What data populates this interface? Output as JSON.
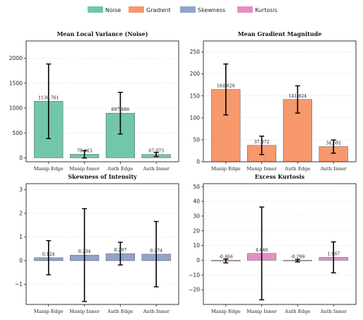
{
  "legend": [
    {
      "label": "Noise",
      "color": "#72c7a9"
    },
    {
      "label": "Gradient",
      "color": "#f7986d"
    },
    {
      "label": "Skewness",
      "color": "#92a3cb"
    },
    {
      "label": "Kurtosis",
      "color": "#e58fc5"
    }
  ],
  "chart_data": [
    {
      "type": "bar",
      "title": "Mean Local Variance (Noise)",
      "series_name": "Noise",
      "color": "#72c7a9",
      "categories": [
        "Manip Edge",
        "Manip Inner",
        "Auth Edge",
        "Auth Inner"
      ],
      "values": [
        1136.761,
        70.443,
        897.866,
        67.073
      ],
      "value_labels": [
        "1136.761",
        "70.443",
        "897.866",
        "67.073"
      ],
      "errors": [
        750,
        75,
        420,
        40
      ],
      "ylim": [
        -80,
        2350
      ],
      "yticks": [
        0,
        500,
        1000,
        1500,
        2000
      ],
      "ytick_labels": [
        "0",
        "500",
        "1000",
        "1500",
        "2000"
      ],
      "grid": true
    },
    {
      "type": "bar",
      "title": "Mean Gradient Magnitude",
      "series_name": "Gradient",
      "color": "#f7986d",
      "categories": [
        "Manip Edge",
        "Manip Inner",
        "Auth Edge",
        "Auth Inner"
      ],
      "values": [
        164.62,
        37.372,
        141.824,
        34.591
      ],
      "value_labels": [
        "164.620",
        "37.372",
        "141.824",
        "34.591"
      ],
      "errors": [
        58,
        21,
        31,
        15
      ],
      "ylim": [
        0,
        275
      ],
      "yticks": [
        0,
        50,
        100,
        150,
        200,
        250
      ],
      "ytick_labels": [
        "0",
        "50",
        "100",
        "150",
        "200",
        "250"
      ],
      "grid": true
    },
    {
      "type": "bar",
      "title": "Skewness of Intensity",
      "series_name": "Skewness",
      "color": "#92a3cb",
      "categories": [
        "Manip Edge",
        "Manip Inner",
        "Auth Edge",
        "Auth Inner"
      ],
      "values": [
        0.124,
        0.234,
        0.297,
        0.274
      ],
      "value_labels": [
        "0.124",
        "0.234",
        "0.297",
        "0.274"
      ],
      "errors": [
        0.72,
        1.96,
        0.48,
        1.38
      ],
      "ylim": [
        -1.85,
        3.25
      ],
      "yticks": [
        -1,
        0,
        1,
        2,
        3
      ],
      "ytick_labels": [
        "−1",
        "0",
        "1",
        "2",
        "3"
      ],
      "grid": true
    },
    {
      "type": "bar",
      "title": "Excess Kurtosis",
      "series_name": "Kurtosis",
      "color": "#e58fc5",
      "categories": [
        "Manip Edge",
        "Manip Inner",
        "Auth Edge",
        "Auth Inner"
      ],
      "values": [
        -0.466,
        4.646,
        -0.299,
        1.967
      ],
      "value_labels": [
        "-0.466",
        "4.646",
        "-0.299",
        "1.967"
      ],
      "errors": [
        1.3,
        31.5,
        0.8,
        10.5
      ],
      "ylim": [
        -30,
        52
      ],
      "yticks": [
        -20,
        -10,
        0,
        10,
        20,
        30,
        40,
        50
      ],
      "ytick_labels": [
        "−20",
        "−10",
        "0",
        "10",
        "20",
        "30",
        "40",
        "50"
      ],
      "grid": true
    }
  ]
}
